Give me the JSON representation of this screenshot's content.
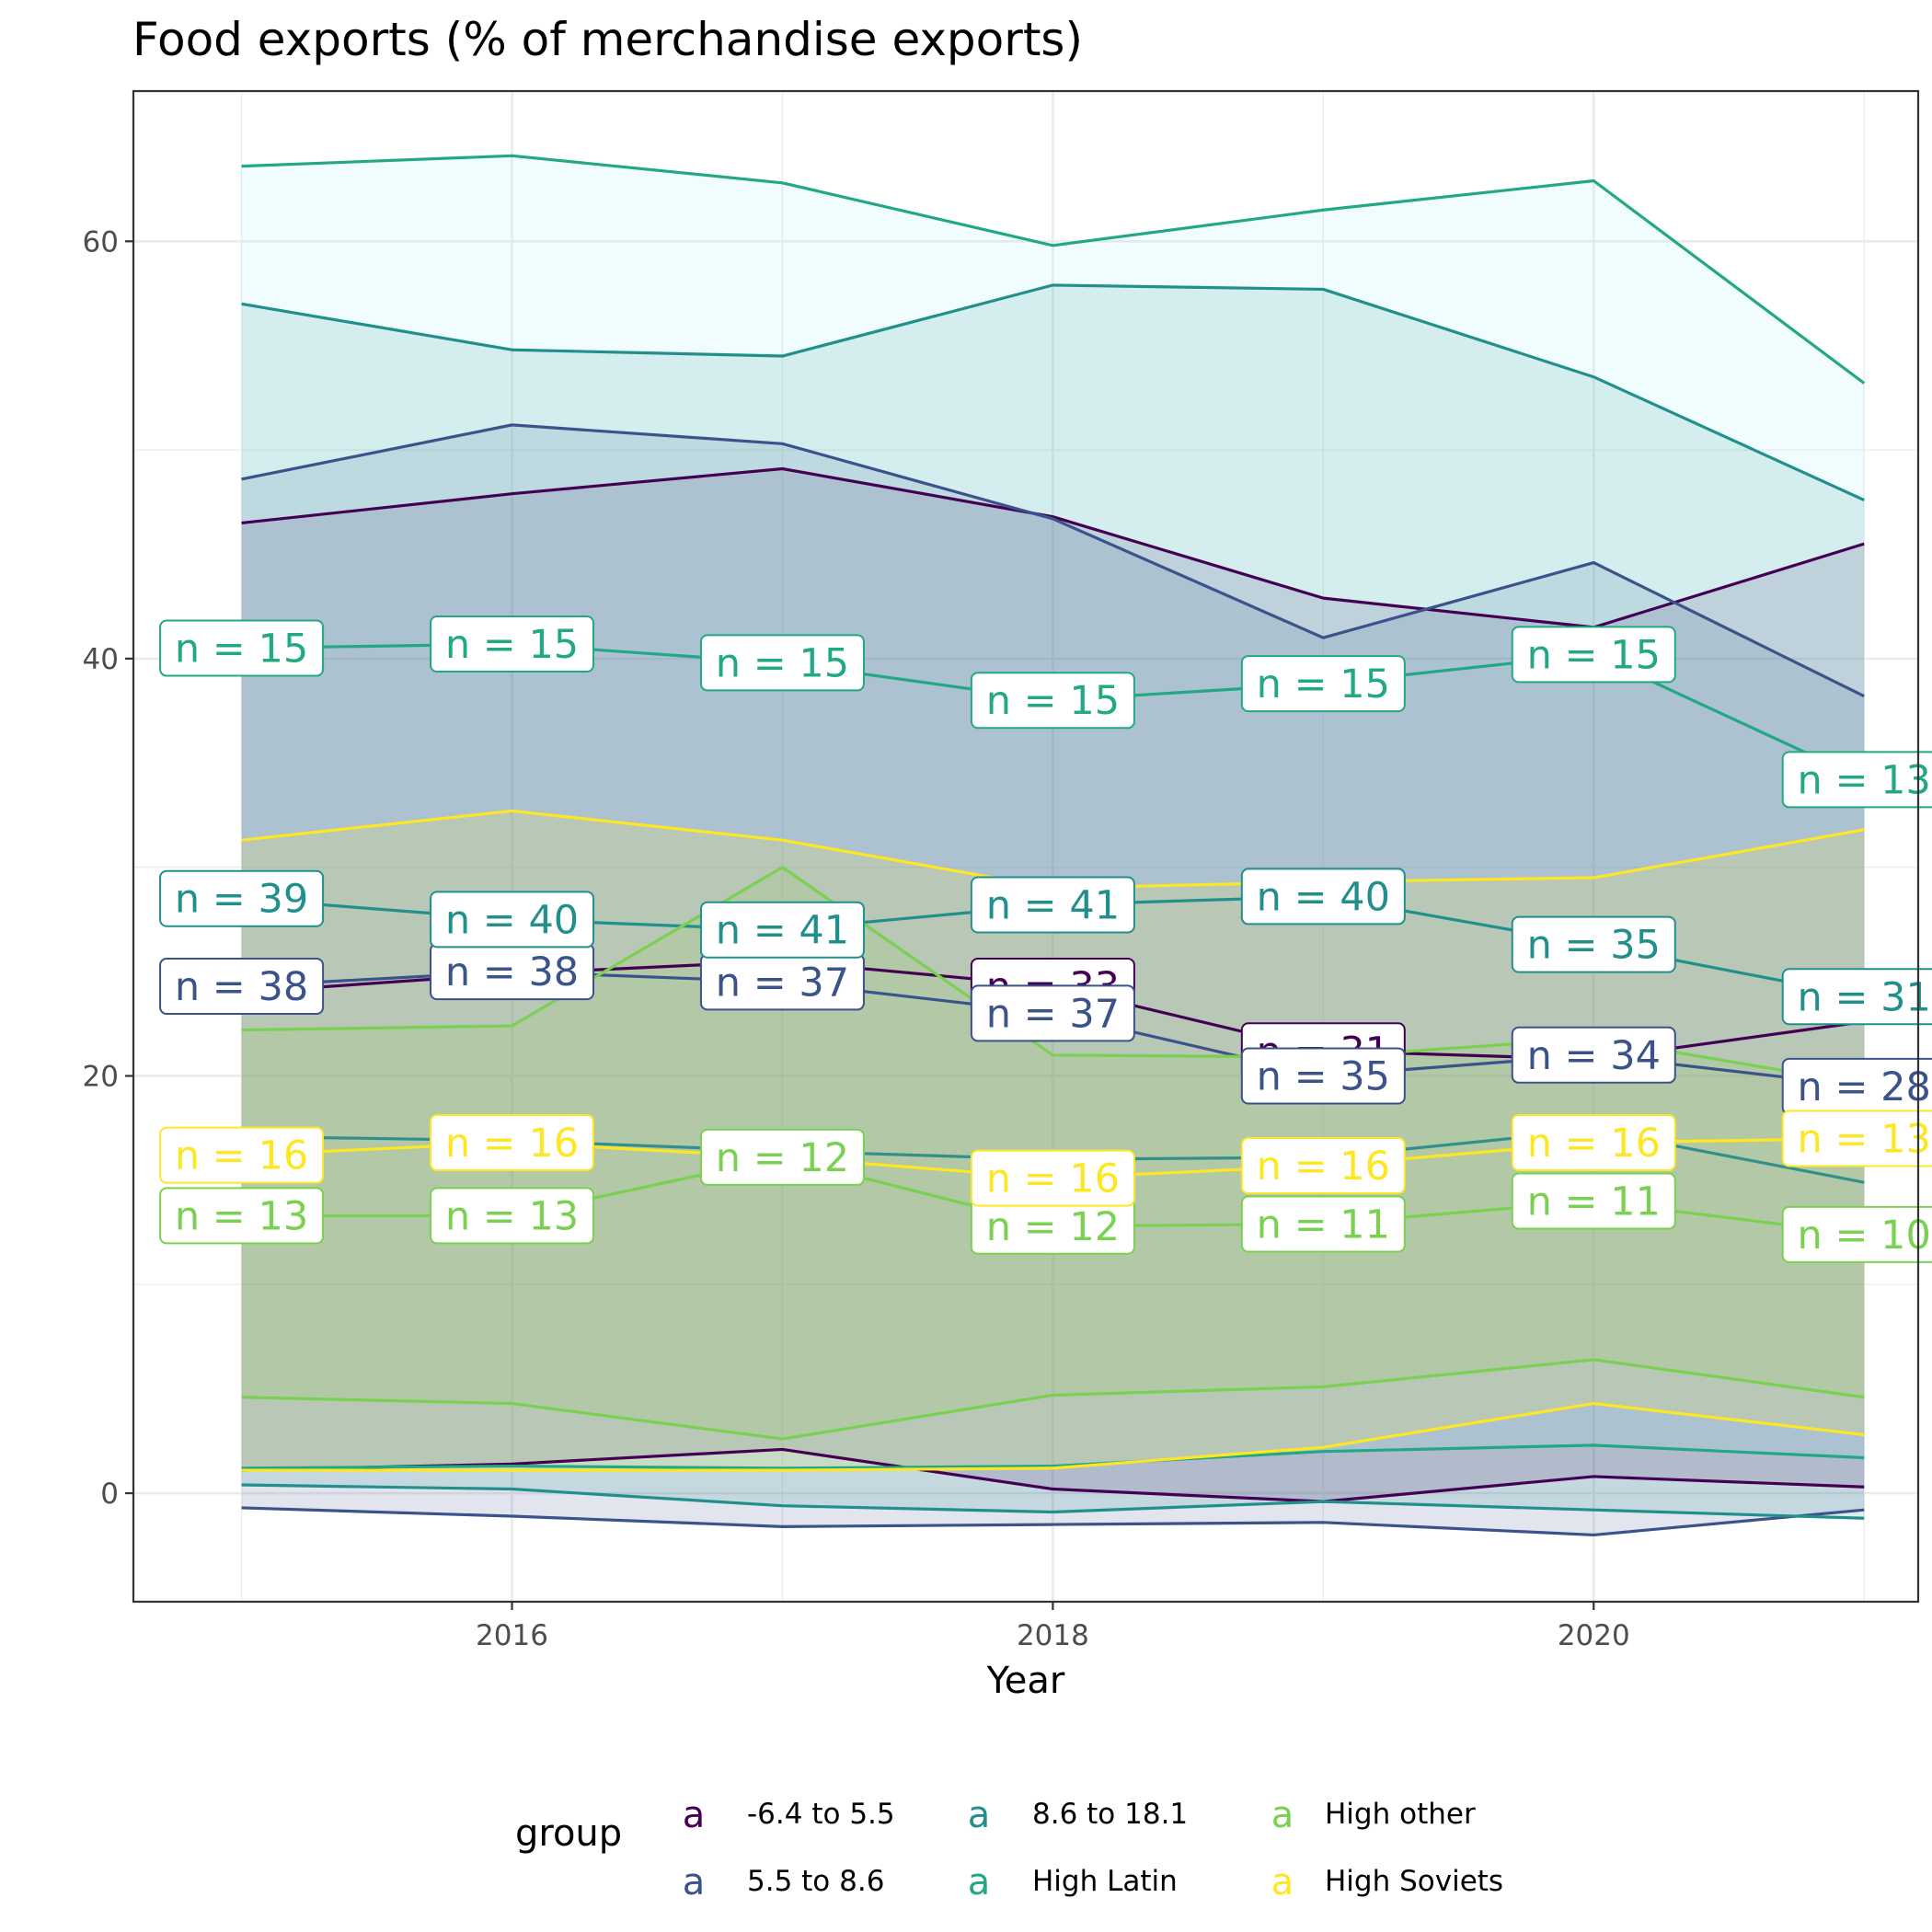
{
  "chart_data": {
    "type": "line",
    "title": "Food exports (% of merchandise exports)",
    "xlabel": "Year",
    "ylabel": "",
    "xlim": [
      2014.6,
      2021.2
    ],
    "ylim": [
      -5.2,
      67.2
    ],
    "x_ticks": [
      2016,
      2018,
      2020
    ],
    "y_ticks": [
      0,
      20,
      40,
      60
    ],
    "grid": true,
    "legend": {
      "title": "group",
      "position": "bottom",
      "key_glyph": "a",
      "entries": [
        "-6.4 to 5.5",
        "5.5 to 8.6",
        "8.6 to 18.1",
        "High Latin",
        "High other",
        "High Soviets"
      ]
    },
    "x": [
      2015,
      2016,
      2017,
      2018,
      2019,
      2020,
      2021
    ],
    "series": [
      {
        "name": "-6.4 to 5.5",
        "color": "#440154",
        "fill": "#440154",
        "median": [
          24.0,
          24.9,
          25.5,
          24.3,
          21.2,
          20.8,
          22.6
        ],
        "upper": [
          46.5,
          47.9,
          49.1,
          46.8,
          42.9,
          41.5,
          45.5
        ],
        "lower": [
          1.1,
          1.4,
          2.1,
          0.2,
          -0.4,
          0.8,
          0.3
        ],
        "n": [
          null,
          null,
          null,
          33,
          31,
          null,
          null
        ]
      },
      {
        "name": "5.5 to 8.6",
        "color": "#3b528b",
        "fill": "#3b528b",
        "median": [
          24.3,
          25.0,
          24.5,
          23.0,
          20.0,
          21.0,
          19.5
        ],
        "upper": [
          48.6,
          51.2,
          50.3,
          46.7,
          41.0,
          44.6,
          38.2
        ],
        "lower": [
          -0.7,
          -1.1,
          -1.6,
          -1.5,
          -1.4,
          -2.0,
          -0.8
        ],
        "n": [
          38,
          38,
          37,
          37,
          35,
          34,
          28
        ]
      },
      {
        "name": "8.6 to 18.1",
        "color": "#21908c",
        "fill": "#21908c",
        "median": [
          28.5,
          27.5,
          27.0,
          28.2,
          28.6,
          26.3,
          23.8
        ],
        "upper": [
          57.0,
          54.8,
          54.5,
          57.9,
          57.7,
          53.5,
          47.6
        ],
        "lower": [
          0.4,
          0.2,
          -0.6,
          -0.9,
          -0.4,
          -0.8,
          -1.2
        ],
        "n": [
          39,
          40,
          41,
          41,
          40,
          35,
          31
        ]
      },
      {
        "name": "8.6 to 18.1 (ribbon line)",
        "color": "#31908c",
        "fill": "#21908c",
        "median": [
          17.1,
          16.9,
          16.4,
          16.0,
          16.1,
          17.4,
          14.9
        ],
        "upper": [],
        "lower": [],
        "n": [
          null,
          null,
          null,
          null,
          null,
          null,
          null
        ]
      },
      {
        "name": "High Latin",
        "color": "#22a884",
        "fill": "#9be8f0",
        "median": [
          40.5,
          40.7,
          39.8,
          38.0,
          38.8,
          40.2,
          34.2
        ],
        "upper": [
          63.6,
          64.1,
          62.8,
          59.8,
          61.5,
          62.9,
          53.2
        ],
        "lower": [
          1.2,
          1.3,
          1.2,
          1.3,
          2.0,
          2.3,
          1.7
        ],
        "n": [
          15,
          15,
          15,
          15,
          15,
          15,
          13
        ]
      },
      {
        "name": "High other",
        "color": "#7ad151",
        "fill": "#7ad151",
        "median": [
          13.3,
          13.3,
          16.1,
          12.8,
          12.9,
          14.0,
          12.4
        ],
        "upper": [
          22.2,
          22.4,
          30.0,
          21.0,
          20.9,
          21.8,
          19.6
        ],
        "lower": [
          4.6,
          4.3,
          2.6,
          4.7,
          5.1,
          6.4,
          4.6
        ],
        "n": [
          13,
          13,
          12,
          12,
          11,
          11,
          10
        ]
      },
      {
        "name": "High Soviets",
        "color": "#fde725",
        "fill": "#fde725",
        "median": [
          16.2,
          16.8,
          16.1,
          15.1,
          15.7,
          16.8,
          17.0
        ],
        "upper": [
          31.3,
          32.7,
          31.3,
          29.0,
          29.3,
          29.5,
          31.8
        ],
        "lower": [
          1.1,
          1.1,
          1.1,
          1.2,
          2.2,
          4.3,
          2.8
        ],
        "n": [
          16,
          16,
          null,
          16,
          16,
          16,
          13
        ]
      }
    ]
  }
}
